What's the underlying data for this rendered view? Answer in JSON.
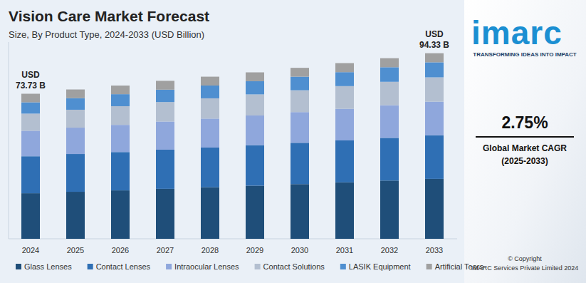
{
  "chart_data": {
    "type": "bar",
    "stacked": true,
    "title": "Vision Care Market Forecast",
    "subtitle": "Size, By Product Type, 2024-2033 (USD Billion)",
    "categories": [
      "2024",
      "2025",
      "2026",
      "2027",
      "2028",
      "2029",
      "2030",
      "2031",
      "2032",
      "2033"
    ],
    "series": [
      {
        "name": "Glass Lenses",
        "color": "#1f4e79",
        "values": [
          23.15,
          23.9,
          24.6,
          25.4,
          26.2,
          27.0,
          27.8,
          28.7,
          29.6,
          30.47
        ]
      },
      {
        "name": "Contact Lenses",
        "color": "#2f6fb4",
        "values": [
          18.8,
          19.2,
          19.5,
          19.9,
          20.2,
          20.6,
          21.0,
          21.3,
          21.7,
          22.17
        ]
      },
      {
        "name": "Intraocular Lenses",
        "color": "#8fa7dc",
        "values": [
          12.98,
          13.4,
          13.8,
          14.3,
          14.7,
          15.1,
          15.6,
          16.1,
          16.6,
          17.07
        ]
      },
      {
        "name": "Contact Solutions",
        "color": "#b3bfd0",
        "values": [
          8.7,
          9.1,
          9.5,
          9.9,
          10.3,
          10.7,
          11.1,
          11.5,
          11.9,
          12.36
        ]
      },
      {
        "name": "LASIK Equipment",
        "color": "#4f8fd0",
        "values": [
          5.75,
          5.9,
          6.1,
          6.3,
          6.5,
          6.7,
          6.9,
          7.1,
          7.4,
          7.64
        ]
      },
      {
        "name": "Artificial Tears",
        "color": "#a0a0a0",
        "values": [
          4.35,
          4.4,
          4.4,
          4.5,
          4.5,
          4.5,
          4.5,
          4.6,
          4.6,
          4.62
        ]
      }
    ],
    "ylim": [
      0,
      100
    ],
    "tick_labels": "x",
    "grid": false,
    "legend": "bottom",
    "annotations": [
      {
        "category": "2024",
        "lines": [
          "USD",
          "73.73 B"
        ]
      },
      {
        "category": "2033",
        "lines": [
          "USD",
          "94.33 B"
        ]
      }
    ]
  },
  "branding": {
    "logo": "imarc",
    "tagline": "TRANSFORMING IDEAS INTO IMPACT",
    "cagr": "2.75%",
    "cagr_label": "Global Market CAGR",
    "cagr_period": "(2025-2033)",
    "copyright": "© Copyright",
    "company": "IMARC Services Private Limited 2024"
  }
}
